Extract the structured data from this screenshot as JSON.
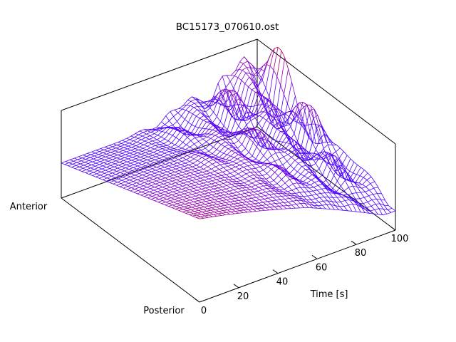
{
  "chart_data": {
    "type": "surface",
    "title": "BC15173_070610.ost",
    "xlabel": "Time [s]",
    "xlim": [
      0,
      100
    ],
    "xticks": [
      "0",
      "20",
      "40",
      "60",
      "80",
      "100"
    ],
    "y_axis_labels": {
      "front": "Posterior",
      "back": "Anterior"
    },
    "colormap": [
      "#4b00ff",
      "#8a00c8",
      "#b4005a",
      "#e04000",
      "#ffb000"
    ],
    "grid": false
  }
}
